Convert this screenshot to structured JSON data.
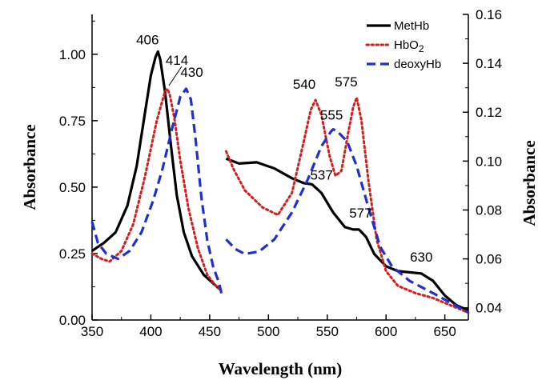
{
  "chart_data": {
    "type": "line",
    "xlabel": "Wavelength  (nm)",
    "ylabel_left": "Absorbance",
    "ylabel_right": "Absorbance",
    "x_ticks": [
      "350",
      "400",
      "450",
      "500",
      "550",
      "600",
      "650"
    ],
    "y_left_ticks": [
      "0.00",
      "0.25",
      "0.50",
      "0.75",
      "1.00"
    ],
    "y_right_ticks": [
      "0.04",
      "0.06",
      "0.08",
      "0.10",
      "0.12",
      "0.14",
      "0.16"
    ],
    "xlim": [
      350,
      670
    ],
    "ylim_left": [
      0,
      1.15
    ],
    "ylim_right": [
      0.035,
      0.16
    ],
    "grid": false,
    "legend_position": "top-right",
    "series": [
      {
        "name": "MetHb",
        "color": "#000000",
        "style": "solid",
        "segments": [
          {
            "axis": "left",
            "points": [
              [
                350,
                0.26
              ],
              [
                360,
                0.29
              ],
              [
                370,
                0.33
              ],
              [
                380,
                0.43
              ],
              [
                388,
                0.58
              ],
              [
                395,
                0.78
              ],
              [
                400,
                0.92
              ],
              [
                404,
                0.99
              ],
              [
                406,
                1.01
              ],
              [
                408,
                0.98
              ],
              [
                412,
                0.86
              ],
              [
                417,
                0.66
              ],
              [
                422,
                0.47
              ],
              [
                428,
                0.33
              ],
              [
                435,
                0.24
              ],
              [
                445,
                0.17
              ],
              [
                455,
                0.13
              ],
              [
                460,
                0.11
              ]
            ]
          },
          {
            "axis": "right",
            "points": [
              [
                464,
                0.101
              ],
              [
                475,
                0.099
              ],
              [
                490,
                0.0995
              ],
              [
                505,
                0.097
              ],
              [
                520,
                0.093
              ],
              [
                530,
                0.091
              ],
              [
                537,
                0.0905
              ],
              [
                545,
                0.087
              ],
              [
                555,
                0.079
              ],
              [
                565,
                0.073
              ],
              [
                572,
                0.072
              ],
              [
                577,
                0.072
              ],
              [
                583,
                0.069
              ],
              [
                590,
                0.062
              ],
              [
                600,
                0.057
              ],
              [
                610,
                0.055
              ],
              [
                620,
                0.0545
              ],
              [
                630,
                0.054
              ],
              [
                640,
                0.051
              ],
              [
                650,
                0.045
              ],
              [
                660,
                0.041
              ],
              [
                670,
                0.039
              ]
            ]
          }
        ]
      },
      {
        "name": "HbO2",
        "color": "#d22020",
        "style": "dotted",
        "segments": [
          {
            "axis": "left",
            "points": [
              [
                350,
                0.25
              ],
              [
                358,
                0.23
              ],
              [
                365,
                0.22
              ],
              [
                375,
                0.26
              ],
              [
                385,
                0.36
              ],
              [
                395,
                0.54
              ],
              [
                405,
                0.75
              ],
              [
                412,
                0.86
              ],
              [
                414,
                0.87
              ],
              [
                416,
                0.85
              ],
              [
                420,
                0.76
              ],
              [
                425,
                0.6
              ],
              [
                432,
                0.42
              ],
              [
                440,
                0.27
              ],
              [
                448,
                0.17
              ],
              [
                455,
                0.13
              ],
              [
                460,
                0.11
              ]
            ]
          },
          {
            "axis": "right",
            "points": [
              [
                464,
                0.104
              ],
              [
                470,
                0.097
              ],
              [
                480,
                0.088
              ],
              [
                495,
                0.081
              ],
              [
                508,
                0.078
              ],
              [
                520,
                0.087
              ],
              [
                530,
                0.108
              ],
              [
                536,
                0.121
              ],
              [
                540,
                0.125
              ],
              [
                545,
                0.119
              ],
              [
                552,
                0.102
              ],
              [
                557,
                0.094
              ],
              [
                562,
                0.096
              ],
              [
                568,
                0.112
              ],
              [
                572,
                0.122
              ],
              [
                575,
                0.126
              ],
              [
                579,
                0.117
              ],
              [
                585,
                0.092
              ],
              [
                592,
                0.068
              ],
              [
                600,
                0.055
              ],
              [
                610,
                0.049
              ],
              [
                625,
                0.046
              ],
              [
                640,
                0.044
              ],
              [
                655,
                0.041
              ],
              [
                670,
                0.038
              ]
            ]
          }
        ]
      },
      {
        "name": "deoxyHb",
        "color": "#1f2fd0",
        "style": "dashed",
        "segments": [
          {
            "axis": "left",
            "points": [
              [
                350,
                0.37
              ],
              [
                355,
                0.29
              ],
              [
                362,
                0.25
              ],
              [
                372,
                0.23
              ],
              [
                382,
                0.26
              ],
              [
                392,
                0.33
              ],
              [
                402,
                0.45
              ],
              [
                410,
                0.57
              ],
              [
                418,
                0.72
              ],
              [
                425,
                0.84
              ],
              [
                430,
                0.87
              ],
              [
                434,
                0.83
              ],
              [
                438,
                0.68
              ],
              [
                443,
                0.46
              ],
              [
                448,
                0.3
              ],
              [
                453,
                0.2
              ],
              [
                458,
                0.14
              ],
              [
                460,
                0.1
              ]
            ]
          },
          {
            "axis": "right",
            "points": [
              [
                464,
                0.068
              ],
              [
                472,
                0.064
              ],
              [
                480,
                0.062
              ],
              [
                492,
                0.063
              ],
              [
                505,
                0.068
              ],
              [
                520,
                0.079
              ],
              [
                533,
                0.092
              ],
              [
                545,
                0.106
              ],
              [
                553,
                0.112
              ],
              [
                555,
                0.113
              ],
              [
                559,
                0.112
              ],
              [
                567,
                0.108
              ],
              [
                575,
                0.098
              ],
              [
                585,
                0.081
              ],
              [
                595,
                0.065
              ],
              [
                605,
                0.057
              ],
              [
                620,
                0.051
              ],
              [
                640,
                0.046
              ],
              [
                655,
                0.042
              ],
              [
                670,
                0.038
              ]
            ]
          }
        ]
      }
    ],
    "annotations": [
      {
        "text": "406",
        "x": 406,
        "y": 1.01,
        "axis": "left"
      },
      {
        "text": "414",
        "x": 414,
        "y": 0.87,
        "axis": "left"
      },
      {
        "text": "430",
        "x": 430,
        "y": 0.87,
        "axis": "left"
      },
      {
        "text": "540",
        "x": 540,
        "y": 0.125,
        "axis": "right"
      },
      {
        "text": "575",
        "x": 575,
        "y": 0.126,
        "axis": "right"
      },
      {
        "text": "555",
        "x": 555,
        "y": 0.113,
        "axis": "right"
      },
      {
        "text": "537",
        "x": 537,
        "y": 0.0905,
        "axis": "right"
      },
      {
        "text": "577",
        "x": 577,
        "y": 0.072,
        "axis": "right"
      },
      {
        "text": "630",
        "x": 630,
        "y": 0.054,
        "axis": "right"
      }
    ],
    "legend_labels": {
      "MetHb": "MetHb",
      "HbO2_main": "HbO",
      "HbO2_sub": "2",
      "deoxyHb": "deoxyHb"
    }
  }
}
